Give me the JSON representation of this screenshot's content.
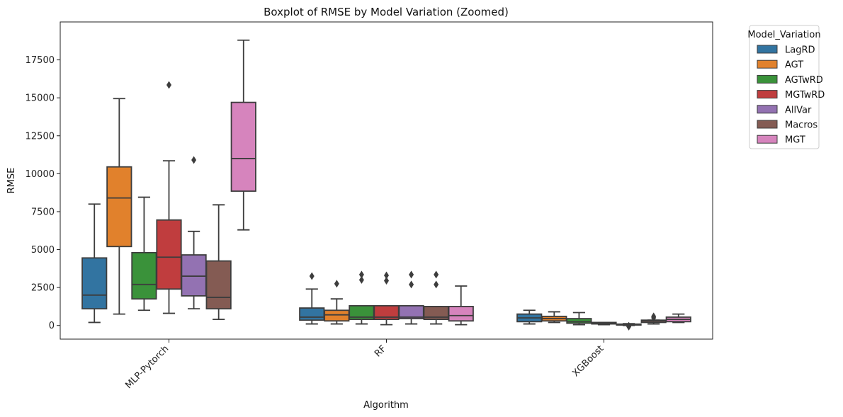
{
  "chart_data": {
    "type": "boxplot",
    "title": "Boxplot of RMSE by Model Variation (Zoomed)",
    "xlabel": "Algorithm",
    "ylabel": "RMSE",
    "ylim": [
      -900,
      20000
    ],
    "yticks": [
      0,
      2500,
      5000,
      7500,
      10000,
      12500,
      15000,
      17500
    ],
    "categories": [
      "MLP-Pytorch",
      "RF",
      "XGBoost"
    ],
    "legend": {
      "title": "Model_Variation",
      "placement": "outside-upper-right"
    },
    "series": [
      {
        "name": "LagRD",
        "color": "#3274a1",
        "boxes": [
          {
            "whislo": 200,
            "q1": 1100,
            "med": 2000,
            "q3": 4450,
            "whishi": 8000,
            "fliers": []
          },
          {
            "whislo": 100,
            "q1": 350,
            "med": 550,
            "q3": 1150,
            "whishi": 2400,
            "fliers": [
              3250
            ]
          },
          {
            "whislo": 100,
            "q1": 250,
            "med": 500,
            "q3": 750,
            "whishi": 1000,
            "fliers": []
          }
        ]
      },
      {
        "name": "AGT",
        "color": "#e1812c",
        "boxes": [
          {
            "whislo": 750,
            "q1": 5200,
            "med": 8400,
            "q3": 10450,
            "whishi": 14950,
            "fliers": []
          },
          {
            "whislo": 100,
            "q1": 300,
            "med": 700,
            "q3": 1000,
            "whishi": 1750,
            "fliers": [
              2750
            ]
          },
          {
            "whislo": 200,
            "q1": 300,
            "med": 450,
            "q3": 600,
            "whishi": 900,
            "fliers": []
          }
        ]
      },
      {
        "name": "AGTwRD",
        "color": "#3a923a",
        "boxes": [
          {
            "whislo": 1000,
            "q1": 1750,
            "med": 2700,
            "q3": 4800,
            "whishi": 8450,
            "fliers": []
          },
          {
            "whislo": 100,
            "q1": 400,
            "med": 550,
            "q3": 1300,
            "whishi": 1300,
            "fliers": [
              3000,
              3350
            ]
          },
          {
            "whislo": 50,
            "q1": 150,
            "med": 250,
            "q3": 450,
            "whishi": 850,
            "fliers": []
          }
        ]
      },
      {
        "name": "MGTwRD",
        "color": "#c03d3e",
        "boxes": [
          {
            "whislo": 800,
            "q1": 2400,
            "med": 4500,
            "q3": 6950,
            "whishi": 10850,
            "fliers": [
              15850
            ]
          },
          {
            "whislo": 50,
            "q1": 400,
            "med": 550,
            "q3": 1300,
            "whishi": 1300,
            "fliers": [
              2950,
              3300
            ]
          },
          {
            "whislo": 50,
            "q1": 100,
            "med": 150,
            "q3": 200,
            "whishi": 200,
            "fliers": []
          }
        ]
      },
      {
        "name": "AllVar",
        "color": "#9372b2",
        "boxes": [
          {
            "whislo": 1100,
            "q1": 1950,
            "med": 3250,
            "q3": 4650,
            "whishi": 6200,
            "fliers": [
              10900
            ]
          },
          {
            "whislo": 100,
            "q1": 450,
            "med": 550,
            "q3": 1300,
            "whishi": 1300,
            "fliers": [
              2700,
              3350
            ]
          },
          {
            "whislo": 0,
            "q1": 30,
            "med": 60,
            "q3": 90,
            "whishi": 120,
            "fliers": [
              -80,
              -20
            ]
          }
        ]
      },
      {
        "name": "Macros",
        "color": "#845b53",
        "boxes": [
          {
            "whislo": 400,
            "q1": 1100,
            "med": 1850,
            "q3": 4250,
            "whishi": 7950,
            "fliers": []
          },
          {
            "whislo": 100,
            "q1": 400,
            "med": 550,
            "q3": 1250,
            "whishi": 1250,
            "fliers": [
              2700,
              3350
            ]
          },
          {
            "whislo": 100,
            "q1": 200,
            "med": 300,
            "q3": 350,
            "whishi": 350,
            "fliers": [
              500,
              600
            ]
          }
        ]
      },
      {
        "name": "MGT",
        "color": "#d684bd",
        "boxes": [
          {
            "whislo": 6300,
            "q1": 8850,
            "med": 11000,
            "q3": 14700,
            "whishi": 18800,
            "fliers": []
          },
          {
            "whislo": 50,
            "q1": 300,
            "med": 650,
            "q3": 1250,
            "whishi": 2600,
            "fliers": []
          },
          {
            "whislo": 200,
            "q1": 250,
            "med": 400,
            "q3": 550,
            "whishi": 750,
            "fliers": []
          }
        ]
      }
    ]
  }
}
